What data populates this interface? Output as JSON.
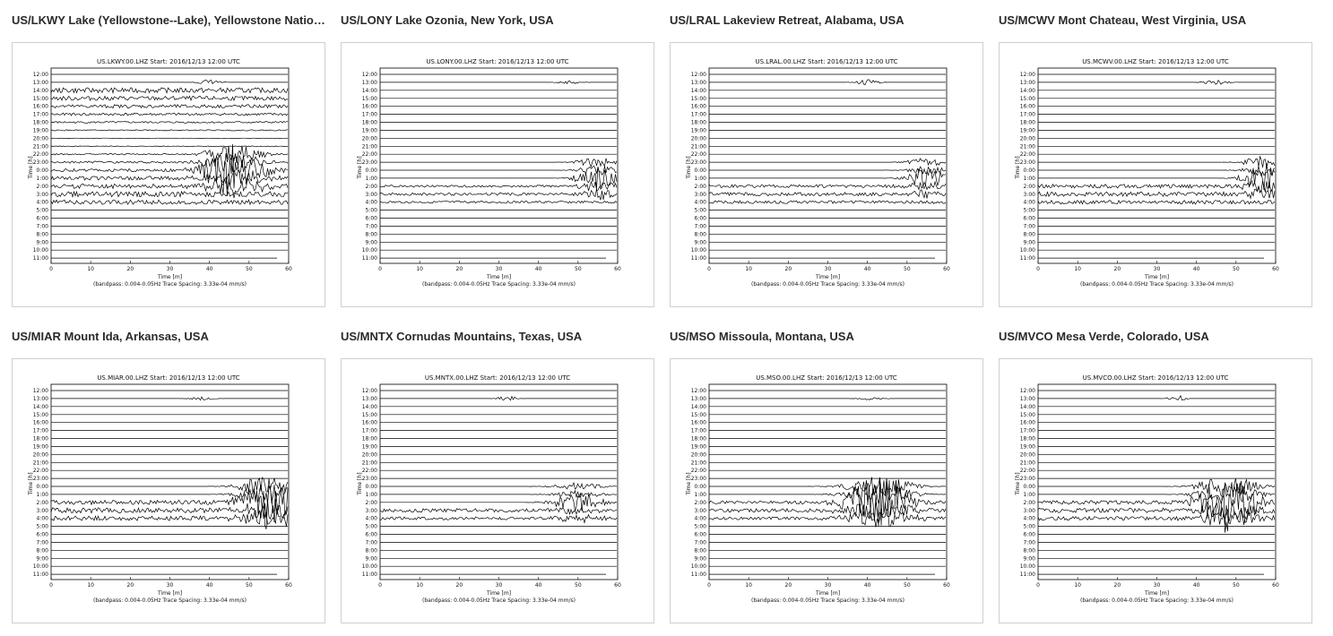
{
  "common": {
    "start": "Start: 2016/12/13 12:00 UTC",
    "hour_labels": [
      "12:00",
      "13:00",
      "14:00",
      "15:00",
      "16:00",
      "17:00",
      "18:00",
      "19:00",
      "20:00",
      "21:00",
      "22:00",
      "23:00",
      "0:00",
      "1:00",
      "2:00",
      "3:00",
      "4:00",
      "5:00",
      "6:00",
      "7:00",
      "8:00",
      "9:00",
      "10:00",
      "11:00"
    ],
    "x_ticks": [
      "0",
      "10",
      "20",
      "30",
      "40",
      "50",
      "60"
    ],
    "xlabel": "Time [m]",
    "ylabel": "Time [h]",
    "footer": "(bandpass: 0.004-0.05Hz  Trace Spacing: 3.33e-04 mm/s)"
  },
  "stations": [
    {
      "title": "US/LKWY Lake (Yellowstone--Lake), Yellowstone National ...",
      "plot_title": "US.LKWY.00.LHZ",
      "events": [
        {
          "row": 1,
          "t": 40,
          "amp": 3,
          "w": 3
        },
        {
          "row": 12,
          "t": 46,
          "amp": 30,
          "w": 7
        }
      ],
      "noisy_rows": [
        2,
        3,
        4,
        5,
        6,
        7,
        8,
        9,
        10,
        11,
        12,
        13,
        14,
        15,
        16
      ],
      "noise": 6
    },
    {
      "title": "US/LONY Lake Ozonia, New York, USA",
      "plot_title": "US.LONY.00.LHZ",
      "events": [
        {
          "row": 1,
          "t": 48,
          "amp": 2,
          "w": 3
        },
        {
          "row": 13,
          "t": 55,
          "amp": 14,
          "w": 5
        }
      ],
      "noisy_rows": [
        14,
        15,
        16
      ],
      "noise": 3
    },
    {
      "title": "US/LRAL Lakeview Retreat, Alabama, USA",
      "plot_title": "US.LRAL.00.LHZ",
      "events": [
        {
          "row": 1,
          "t": 40,
          "amp": 3,
          "w": 3
        },
        {
          "row": 13,
          "t": 55,
          "amp": 12,
          "w": 5
        }
      ],
      "noisy_rows": [
        14,
        15,
        16
      ],
      "noise": 4
    },
    {
      "title": "US/MCWV Mont Chateau, West Virginia, USA",
      "plot_title": "US.MCWV.00.LHZ",
      "events": [
        {
          "row": 1,
          "t": 45,
          "amp": 3,
          "w": 3
        },
        {
          "row": 13,
          "t": 57,
          "amp": 18,
          "w": 5
        }
      ],
      "noisy_rows": [
        14,
        15,
        16
      ],
      "noise": 5
    },
    {
      "title": "US/MIAR Mount Ida, Arkansas, USA",
      "plot_title": "US.MIAR.00.LHZ",
      "events": [
        {
          "row": 1,
          "t": 38,
          "amp": 2,
          "w": 3
        },
        {
          "row": 14,
          "t": 55,
          "amp": 30,
          "w": 7
        }
      ],
      "noisy_rows": [
        14,
        15,
        16
      ],
      "noise": 6
    },
    {
      "title": "US/MNTX Cornudas Mountains, Texas, USA",
      "plot_title": "US.MNTX.00.LHZ",
      "events": [
        {
          "row": 1,
          "t": 32,
          "amp": 5,
          "w": 2
        },
        {
          "row": 14,
          "t": 50,
          "amp": 11,
          "w": 6
        }
      ],
      "noisy_rows": [
        15,
        16
      ],
      "noise": 4
    },
    {
      "title": "US/MSO Missoula, Montana, USA",
      "plot_title": "US.MSO.00.LHZ",
      "events": [
        {
          "row": 1,
          "t": 41,
          "amp": 2,
          "w": 3
        },
        {
          "row": 14,
          "t": 43,
          "amp": 30,
          "w": 8
        }
      ],
      "noisy_rows": [
        14,
        15,
        16
      ],
      "noise": 4
    },
    {
      "title": "US/MVCO Mesa Verde, Colorado, USA",
      "plot_title": "US.MVCO.00.LHZ",
      "events": [
        {
          "row": 1,
          "t": 35,
          "amp": 4,
          "w": 2
        },
        {
          "row": 14,
          "t": 48,
          "amp": 34,
          "w": 7
        }
      ],
      "noisy_rows": [
        14,
        15,
        16
      ],
      "noise": 5
    }
  ]
}
